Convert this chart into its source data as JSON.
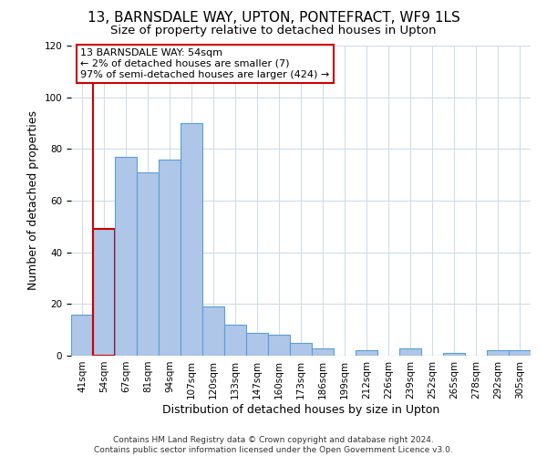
{
  "title": "13, BARNSDALE WAY, UPTON, PONTEFRACT, WF9 1LS",
  "subtitle": "Size of property relative to detached houses in Upton",
  "xlabel": "Distribution of detached houses by size in Upton",
  "ylabel": "Number of detached properties",
  "bar_labels": [
    "41sqm",
    "54sqm",
    "67sqm",
    "81sqm",
    "94sqm",
    "107sqm",
    "120sqm",
    "133sqm",
    "147sqm",
    "160sqm",
    "173sqm",
    "186sqm",
    "199sqm",
    "212sqm",
    "226sqm",
    "239sqm",
    "252sqm",
    "265sqm",
    "278sqm",
    "292sqm",
    "305sqm"
  ],
  "bar_values": [
    16,
    49,
    77,
    71,
    76,
    90,
    19,
    12,
    9,
    8,
    5,
    3,
    0,
    2,
    0,
    3,
    0,
    1,
    0,
    2,
    2
  ],
  "bar_color": "#aec6e8",
  "bar_edge_color": "#5a9fd4",
  "highlight_bar_index": 1,
  "highlight_bar_edge_color": "#cc0000",
  "highlight_line_color": "#cc0000",
  "annotation_title": "13 BARNSDALE WAY: 54sqm",
  "annotation_line1": "← 2% of detached houses are smaller (7)",
  "annotation_line2": "97% of semi-detached houses are larger (424) →",
  "annotation_box_color": "#ffffff",
  "annotation_box_edge_color": "#cc0000",
  "ylim": [
    0,
    120
  ],
  "yticks": [
    0,
    20,
    40,
    60,
    80,
    100,
    120
  ],
  "footer1": "Contains HM Land Registry data © Crown copyright and database right 2024.",
  "footer2": "Contains public sector information licensed under the Open Government Licence v3.0.",
  "background_color": "#ffffff",
  "grid_color": "#d0dce8",
  "title_fontsize": 11,
  "subtitle_fontsize": 9.5,
  "axis_label_fontsize": 9,
  "tick_fontsize": 7.5,
  "annotation_fontsize": 8,
  "footer_fontsize": 6.5
}
